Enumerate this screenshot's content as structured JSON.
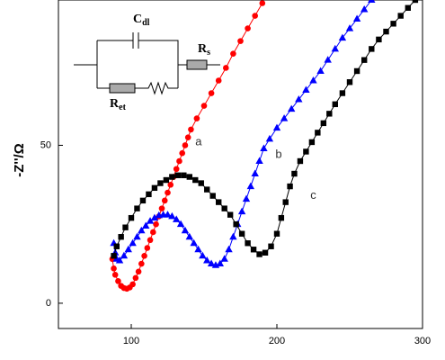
{
  "chart_data": {
    "type": "scatter",
    "ylabel": "-Z''/Ω",
    "xlim": [
      50,
      300
    ],
    "ylim": [
      -8,
      96
    ],
    "xticks": [
      100,
      200,
      300
    ],
    "yticks": [
      0,
      50
    ],
    "series": [
      {
        "color": "#ff0000",
        "marker": "circle",
        "x": [
          87,
          88,
          89,
          91,
          93,
          95,
          97,
          99,
          101,
          103,
          105,
          107,
          109,
          111,
          113,
          115,
          117,
          119,
          121,
          123,
          125,
          127,
          129,
          131,
          133,
          135,
          137,
          139,
          141,
          145,
          150,
          155,
          160,
          165,
          170,
          175,
          180,
          185,
          190
        ],
        "values": [
          14,
          11,
          9,
          7,
          5.5,
          4.8,
          4.6,
          5,
          6,
          8,
          10,
          12.5,
          15,
          17.5,
          20,
          22.5,
          25,
          27.5,
          30,
          32.5,
          35,
          37.5,
          40,
          42.5,
          45,
          47.5,
          50,
          52.5,
          55,
          58.5,
          62.5,
          66.5,
          70.5,
          74.5,
          79,
          83,
          87,
          91,
          95
        ]
      },
      {
        "color": "#0000ff",
        "marker": "triangle",
        "x": [
          88,
          89,
          90,
          92,
          95,
          98,
          101,
          104,
          107,
          110,
          113,
          116,
          119,
          122,
          125,
          128,
          131,
          134,
          137,
          140,
          143,
          146,
          149,
          152,
          155,
          158,
          161,
          164,
          167,
          170,
          173,
          176,
          179,
          182,
          185,
          188,
          191,
          195,
          200,
          205,
          210,
          215,
          220,
          225,
          230,
          235,
          240,
          245,
          250,
          255,
          260,
          265
        ],
        "values": [
          19,
          16,
          14,
          13.5,
          15,
          17,
          19,
          21,
          23,
          24.5,
          26,
          27,
          27.8,
          28,
          28,
          27.5,
          26.5,
          25,
          23,
          21,
          19,
          17,
          15,
          13.5,
          12.5,
          12,
          12.5,
          14,
          17,
          21,
          25,
          29,
          33,
          37,
          41,
          45,
          49,
          52,
          55.5,
          58.5,
          61.5,
          64.5,
          67.5,
          70.5,
          73.5,
          77,
          80.5,
          84,
          87,
          90,
          93,
          96
        ]
      },
      {
        "color": "#000000",
        "marker": "square",
        "x": [
          88,
          90,
          93,
          96,
          100,
          104,
          108,
          112,
          116,
          120,
          124,
          128,
          132,
          136,
          140,
          144,
          148,
          152,
          156,
          160,
          164,
          168,
          172,
          176,
          180,
          184,
          188,
          192,
          196,
          200,
          203,
          206,
          209,
          212,
          216,
          220,
          224,
          228,
          232,
          236,
          240,
          245,
          250,
          255,
          260,
          265,
          270,
          275,
          280,
          285,
          290,
          295
        ],
        "values": [
          15,
          18,
          21,
          24,
          27,
          30,
          32.5,
          34.5,
          36.5,
          38,
          39,
          40,
          40.5,
          40.5,
          40,
          39,
          38,
          36,
          34,
          32,
          30,
          28,
          25,
          22,
          19,
          17,
          15.5,
          16,
          18,
          22,
          27,
          32,
          37,
          41,
          45,
          48,
          51,
          54,
          57,
          60,
          63,
          66.5,
          70,
          73.5,
          77,
          80.5,
          83.5,
          86,
          88.5,
          91,
          93.5,
          96
        ]
      }
    ],
    "annotations": [
      {
        "text": "a",
        "x": 144,
        "y": 51
      },
      {
        "text": "b",
        "x": 199,
        "y": 47
      },
      {
        "text": "c",
        "x": 223,
        "y": 34
      }
    ],
    "circuit": {
      "labels": [
        {
          "main": "C",
          "sub": "dl"
        },
        {
          "main": "R",
          "sub": "s"
        },
        {
          "main": "R",
          "sub": "et"
        }
      ]
    }
  }
}
